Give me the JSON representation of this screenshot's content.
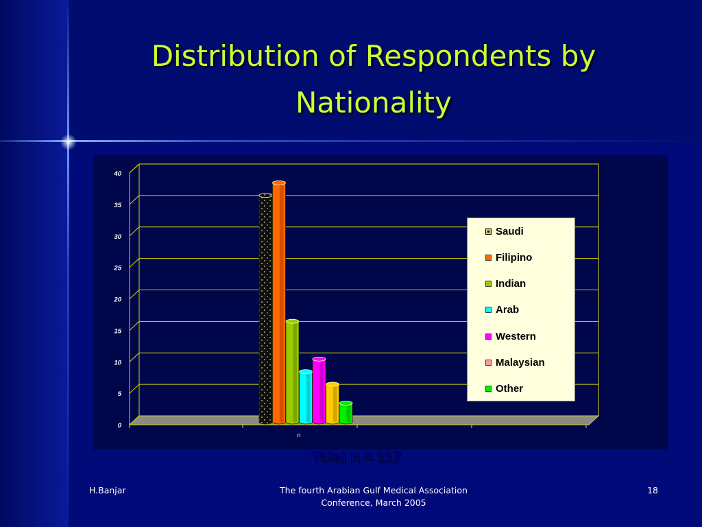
{
  "slide": {
    "title": "Distribution of Respondents by Nationality",
    "total": "Total n = 117",
    "footer_left": "H.Banjar",
    "footer_center": "The fourth Arabian Gulf Medical Association Conference, March 2005",
    "footer_right": "18"
  },
  "colors": {
    "background": "#000a78",
    "title": "#ccff33",
    "gridline": "#d8d800",
    "legend_bg": "#ffffdd"
  },
  "chart_data": {
    "type": "bar",
    "categories": [
      "n"
    ],
    "ylim": [
      0,
      40
    ],
    "yticks": [
      0,
      5,
      10,
      15,
      20,
      25,
      30,
      35,
      40
    ],
    "grid": true,
    "legend_position": "right",
    "title": "",
    "xlabel": "",
    "ylabel": "",
    "series": [
      {
        "name": "Saudi",
        "values": [
          36
        ],
        "color": "#111111"
      },
      {
        "name": "Filipino",
        "values": [
          38
        ],
        "color": "#ff6600"
      },
      {
        "name": "Indian",
        "values": [
          16
        ],
        "color": "#99cc00"
      },
      {
        "name": "Arab",
        "values": [
          8
        ],
        "color": "#00ffff"
      },
      {
        "name": "Western",
        "values": [
          10
        ],
        "color": "#ff00ff"
      },
      {
        "name": "Malaysian",
        "values": [
          6
        ],
        "color": "#ffcc00"
      },
      {
        "name": "Other",
        "values": [
          3
        ],
        "color": "#00ee00"
      }
    ],
    "legend_entries": [
      {
        "name": "Saudi",
        "color": "#111111"
      },
      {
        "name": "Filipino",
        "color": "#ff6600"
      },
      {
        "name": "Indian",
        "color": "#99cc00"
      },
      {
        "name": "Arab",
        "color": "#00ffff"
      },
      {
        "name": "Western",
        "color": "#ff00ff"
      },
      {
        "name": "Malaysian",
        "color": "#ff9999"
      },
      {
        "name": "Other",
        "color": "#00ee00"
      }
    ]
  }
}
